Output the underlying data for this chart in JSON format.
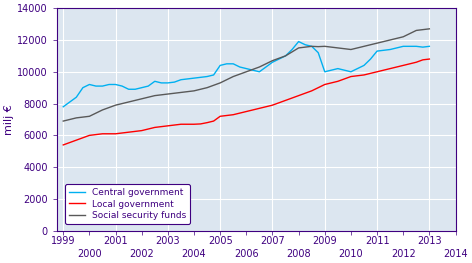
{
  "title": "",
  "ylabel": "milj €",
  "xlim": [
    1998.75,
    2013.75
  ],
  "ylim": [
    0,
    14000
  ],
  "yticks": [
    0,
    2000,
    4000,
    6000,
    8000,
    10000,
    12000,
    14000
  ],
  "xticks_major": [
    1999,
    2001,
    2003,
    2005,
    2007,
    2009,
    2011,
    2013
  ],
  "xticks_minor": [
    2000,
    2002,
    2004,
    2006,
    2008,
    2010,
    2012,
    2014
  ],
  "plot_bg_color": "#dce6f0",
  "fig_bg_color": "#ffffff",
  "grid_color": "#ffffff",
  "central_color": "#00b0f0",
  "local_color": "#ff0000",
  "social_color": "#595959",
  "label_color": "#3f0080",
  "spine_color": "#3f0080",
  "legend_labels": [
    "Central government",
    "Local government",
    "Social security funds"
  ],
  "central_government": {
    "x": [
      1999.0,
      1999.25,
      1999.5,
      1999.75,
      2000.0,
      2000.25,
      2000.5,
      2000.75,
      2001.0,
      2001.25,
      2001.5,
      2001.75,
      2002.0,
      2002.25,
      2002.5,
      2002.75,
      2003.0,
      2003.25,
      2003.5,
      2003.75,
      2004.0,
      2004.25,
      2004.5,
      2004.75,
      2005.0,
      2005.25,
      2005.5,
      2005.75,
      2006.0,
      2006.25,
      2006.5,
      2006.75,
      2007.0,
      2007.25,
      2007.5,
      2007.75,
      2008.0,
      2008.25,
      2008.5,
      2008.75,
      2009.0,
      2009.25,
      2009.5,
      2009.75,
      2010.0,
      2010.25,
      2010.5,
      2010.75,
      2011.0,
      2011.25,
      2011.5,
      2011.75,
      2012.0,
      2012.25,
      2012.5,
      2012.75,
      2013.0
    ],
    "y": [
      7800,
      8100,
      8400,
      9000,
      9200,
      9100,
      9100,
      9200,
      9200,
      9100,
      8900,
      8900,
      9000,
      9100,
      9400,
      9300,
      9300,
      9350,
      9500,
      9550,
      9600,
      9650,
      9700,
      9800,
      10400,
      10500,
      10500,
      10300,
      10200,
      10100,
      10000,
      10300,
      10600,
      10800,
      11000,
      11400,
      11900,
      11700,
      11600,
      11200,
      10000,
      10100,
      10200,
      10100,
      10000,
      10200,
      10400,
      10800,
      11300,
      11350,
      11400,
      11500,
      11600,
      11600,
      11600,
      11550,
      11600
    ]
  },
  "local_government": {
    "x": [
      1999.0,
      1999.25,
      1999.5,
      1999.75,
      2000.0,
      2000.25,
      2000.5,
      2000.75,
      2001.0,
      2001.25,
      2001.5,
      2001.75,
      2002.0,
      2002.25,
      2002.5,
      2002.75,
      2003.0,
      2003.25,
      2003.5,
      2003.75,
      2004.0,
      2004.25,
      2004.5,
      2004.75,
      2005.0,
      2005.25,
      2005.5,
      2005.75,
      2006.0,
      2006.25,
      2006.5,
      2006.75,
      2007.0,
      2007.25,
      2007.5,
      2007.75,
      2008.0,
      2008.25,
      2008.5,
      2008.75,
      2009.0,
      2009.25,
      2009.5,
      2009.75,
      2010.0,
      2010.25,
      2010.5,
      2010.75,
      2011.0,
      2011.25,
      2011.5,
      2011.75,
      2012.0,
      2012.25,
      2012.5,
      2012.75,
      2013.0
    ],
    "y": [
      5400,
      5550,
      5700,
      5850,
      6000,
      6050,
      6100,
      6100,
      6100,
      6150,
      6200,
      6250,
      6300,
      6400,
      6500,
      6550,
      6600,
      6650,
      6700,
      6700,
      6700,
      6720,
      6800,
      6900,
      7200,
      7250,
      7300,
      7400,
      7500,
      7600,
      7700,
      7800,
      7900,
      8050,
      8200,
      8350,
      8500,
      8650,
      8800,
      9000,
      9200,
      9300,
      9400,
      9550,
      9700,
      9750,
      9800,
      9900,
      10000,
      10100,
      10200,
      10300,
      10400,
      10500,
      10600,
      10750,
      10800
    ]
  },
  "social_security": {
    "x": [
      1999.0,
      1999.25,
      1999.5,
      1999.75,
      2000.0,
      2000.25,
      2000.5,
      2000.75,
      2001.0,
      2001.25,
      2001.5,
      2001.75,
      2002.0,
      2002.25,
      2002.5,
      2002.75,
      2003.0,
      2003.25,
      2003.5,
      2003.75,
      2004.0,
      2004.25,
      2004.5,
      2004.75,
      2005.0,
      2005.25,
      2005.5,
      2005.75,
      2006.0,
      2006.25,
      2006.5,
      2006.75,
      2007.0,
      2007.25,
      2007.5,
      2007.75,
      2008.0,
      2008.25,
      2008.5,
      2008.75,
      2009.0,
      2009.25,
      2009.5,
      2009.75,
      2010.0,
      2010.25,
      2010.5,
      2010.75,
      2011.0,
      2011.25,
      2011.5,
      2011.75,
      2012.0,
      2012.25,
      2012.5,
      2012.75,
      2013.0
    ],
    "y": [
      6900,
      7000,
      7100,
      7150,
      7200,
      7400,
      7600,
      7750,
      7900,
      8000,
      8100,
      8200,
      8300,
      8400,
      8500,
      8550,
      8600,
      8650,
      8700,
      8750,
      8800,
      8900,
      9000,
      9150,
      9300,
      9500,
      9700,
      9850,
      10000,
      10150,
      10300,
      10500,
      10700,
      10850,
      11000,
      11250,
      11500,
      11550,
      11600,
      11580,
      11600,
      11550,
      11500,
      11450,
      11400,
      11500,
      11600,
      11700,
      11800,
      11900,
      12000,
      12100,
      12200,
      12400,
      12600,
      12650,
      12700
    ]
  }
}
